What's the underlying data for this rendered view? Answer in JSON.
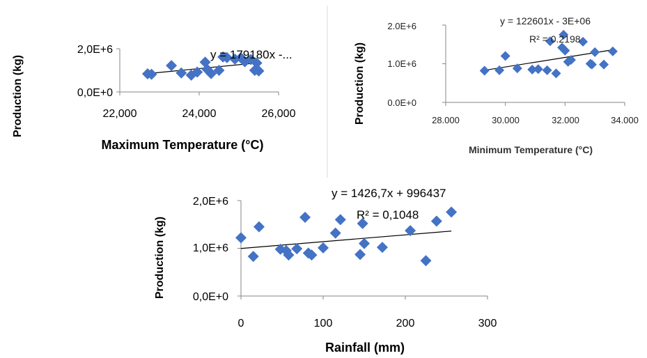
{
  "colors": {
    "marker": "#4472C4",
    "trendline": "#000000",
    "axis": "#868686",
    "divider": "#d9d9d9"
  },
  "chart_data": [
    {
      "type": "scatter",
      "xlabel": "Maximum Temperature (°C)",
      "ylabel": "Production (kg)",
      "xticks": [
        "22,000",
        "24,000",
        "26,000"
      ],
      "yticks": [
        "0,0E+0",
        "2,0E+6"
      ],
      "xlim": [
        22000,
        26000
      ],
      "ylim": [
        0,
        2000000
      ],
      "equation": "y = 179180x -...",
      "trendline": {
        "x": [
          22700,
          25500
        ],
        "y": [
          850000,
          1350000
        ]
      },
      "points": [
        {
          "x": 22700,
          "y": 840000
        },
        {
          "x": 22800,
          "y": 820000
        },
        {
          "x": 23300,
          "y": 1220000
        },
        {
          "x": 23550,
          "y": 880000
        },
        {
          "x": 23800,
          "y": 780000
        },
        {
          "x": 23950,
          "y": 920000
        },
        {
          "x": 24150,
          "y": 1380000
        },
        {
          "x": 24200,
          "y": 1050000
        },
        {
          "x": 24300,
          "y": 850000
        },
        {
          "x": 24500,
          "y": 1000000
        },
        {
          "x": 24600,
          "y": 1620000
        },
        {
          "x": 24700,
          "y": 1590000
        },
        {
          "x": 24900,
          "y": 1520000
        },
        {
          "x": 25050,
          "y": 1580000
        },
        {
          "x": 25150,
          "y": 1400000
        },
        {
          "x": 25300,
          "y": 1500000
        },
        {
          "x": 25400,
          "y": 1000000
        },
        {
          "x": 25450,
          "y": 1340000
        },
        {
          "x": 25500,
          "y": 970000
        }
      ],
      "grid": false,
      "legend": "none"
    },
    {
      "type": "scatter",
      "xlabel": "Minimum Temperature (°C)",
      "ylabel": "Production (kg)",
      "xticks": [
        "28.000",
        "30.000",
        "32.000",
        "34.000"
      ],
      "yticks": [
        "0.0E+0",
        "1.0E+6",
        "2.0E+6"
      ],
      "xlim": [
        28,
        34
      ],
      "ylim": [
        0,
        2000000
      ],
      "equation": "y = 122601x - 3E+06",
      "r2": "R² = 0.2198",
      "trendline": {
        "x": [
          29.3,
          33.6
        ],
        "y": [
          830000,
          1360000
        ]
      },
      "points": [
        {
          "x": 29.3,
          "y": 820000
        },
        {
          "x": 29.8,
          "y": 830000
        },
        {
          "x": 30.0,
          "y": 1200000
        },
        {
          "x": 30.4,
          "y": 880000
        },
        {
          "x": 30.9,
          "y": 850000
        },
        {
          "x": 31.1,
          "y": 860000
        },
        {
          "x": 31.4,
          "y": 830000
        },
        {
          "x": 31.5,
          "y": 1580000
        },
        {
          "x": 31.7,
          "y": 750000
        },
        {
          "x": 31.9,
          "y": 1420000
        },
        {
          "x": 31.95,
          "y": 1750000
        },
        {
          "x": 32.0,
          "y": 1340000
        },
        {
          "x": 32.1,
          "y": 1050000
        },
        {
          "x": 32.2,
          "y": 1100000
        },
        {
          "x": 32.6,
          "y": 1570000
        },
        {
          "x": 32.85,
          "y": 1000000
        },
        {
          "x": 32.9,
          "y": 980000
        },
        {
          "x": 33.0,
          "y": 1300000
        },
        {
          "x": 33.3,
          "y": 980000
        },
        {
          "x": 33.6,
          "y": 1320000
        }
      ],
      "grid": false,
      "legend": "none"
    },
    {
      "type": "scatter",
      "xlabel": "Rainfall (mm)",
      "ylabel": "Production (kg)",
      "xticks": [
        "0",
        "100",
        "200",
        "300"
      ],
      "yticks": [
        "0,0E+0",
        "1,0E+6",
        "2,0E+6"
      ],
      "xlim": [
        0,
        300
      ],
      "ylim": [
        0,
        2000000
      ],
      "equation": "y = 1426,7x + 996437",
      "r2": "R² = 0,1048",
      "trendline": {
        "x": [
          0,
          256
        ],
        "y": [
          996437,
          1361662
        ]
      },
      "points": [
        {
          "x": 0,
          "y": 1220000
        },
        {
          "x": 15,
          "y": 830000
        },
        {
          "x": 22,
          "y": 1450000
        },
        {
          "x": 48,
          "y": 980000
        },
        {
          "x": 55,
          "y": 950000
        },
        {
          "x": 58,
          "y": 860000
        },
        {
          "x": 68,
          "y": 990000
        },
        {
          "x": 78,
          "y": 1650000
        },
        {
          "x": 82,
          "y": 900000
        },
        {
          "x": 86,
          "y": 860000
        },
        {
          "x": 100,
          "y": 1010000
        },
        {
          "x": 115,
          "y": 1320000
        },
        {
          "x": 121,
          "y": 1600000
        },
        {
          "x": 145,
          "y": 870000
        },
        {
          "x": 148,
          "y": 1520000
        },
        {
          "x": 150,
          "y": 1100000
        },
        {
          "x": 172,
          "y": 1020000
        },
        {
          "x": 206,
          "y": 1370000
        },
        {
          "x": 225,
          "y": 740000
        },
        {
          "x": 238,
          "y": 1570000
        },
        {
          "x": 256,
          "y": 1760000
        }
      ],
      "grid": false,
      "legend": "none"
    }
  ]
}
